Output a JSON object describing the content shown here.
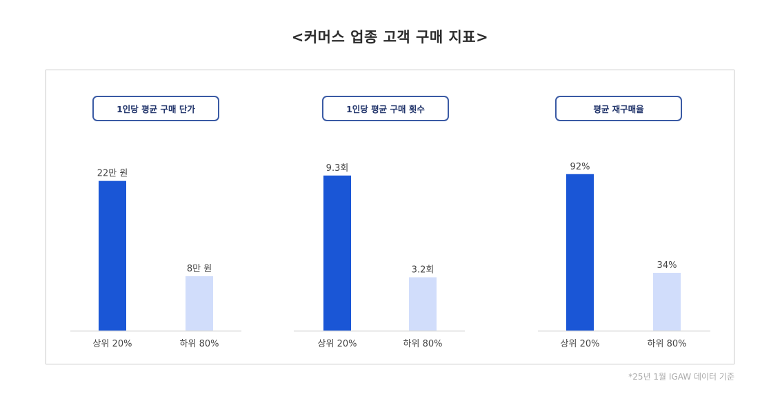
{
  "title": "<커머스 업종 고객 구매 지표>",
  "footnote": "*25년 1월 IGAW 데이터 기준",
  "colors": {
    "top": "#1a56d6",
    "bottom": "#d1ddfb",
    "pill_border": "#3a5aa4",
    "baseline": "#d9d9d9"
  },
  "chart_data": [
    {
      "type": "bar",
      "title": "1인당 평균 구매 단가",
      "categories": [
        "상위 20%",
        "하위 80%"
      ],
      "values": [
        22,
        8
      ],
      "value_labels": [
        "22만 원",
        "8만 원"
      ],
      "ylim": [
        0,
        25
      ],
      "grid": false
    },
    {
      "type": "bar",
      "title": "1인당 평균 구매 횟수",
      "categories": [
        "상위 20%",
        "하위 80%"
      ],
      "values": [
        9.3,
        3.2
      ],
      "value_labels": [
        "9.3회",
        "3.2회"
      ],
      "ylim": [
        0,
        10.2
      ],
      "grid": false
    },
    {
      "type": "bar",
      "title": "평균 재구매율",
      "categories": [
        "상위 20%",
        "하위 80%"
      ],
      "values": [
        92,
        34
      ],
      "value_labels": [
        "92%",
        "34%"
      ],
      "ylim": [
        0,
        100
      ],
      "grid": false
    }
  ]
}
